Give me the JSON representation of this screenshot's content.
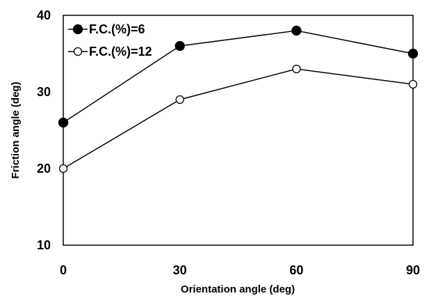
{
  "chart_data": {
    "type": "line",
    "x": [
      0,
      30,
      60,
      90
    ],
    "series": [
      {
        "name": "F.C.(%)=6",
        "values": [
          26,
          36,
          38,
          35
        ],
        "marker": "filled-circle",
        "color": "#000000"
      },
      {
        "name": "F.C.(%)=12",
        "values": [
          20,
          29,
          33,
          31
        ],
        "marker": "open-circle",
        "color": "#000000"
      }
    ],
    "xlabel": "Orientation angle (deg)",
    "ylabel": "Friction angle (deg)",
    "xlim": [
      0,
      90
    ],
    "ylim": [
      10,
      40
    ],
    "xticks": [
      0,
      30,
      60,
      90
    ],
    "yticks": [
      10,
      20,
      30,
      40
    ],
    "grid": false,
    "legend_position": "top-left"
  }
}
